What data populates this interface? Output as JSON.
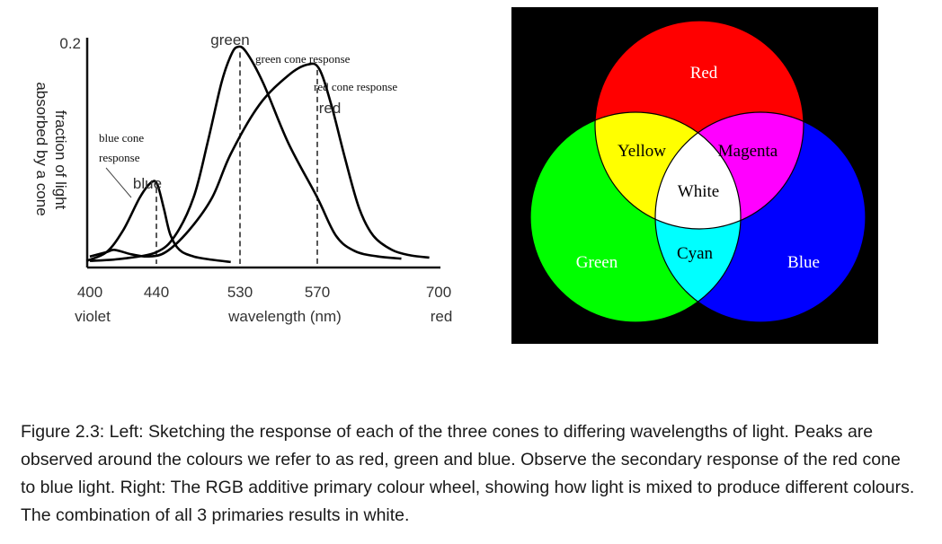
{
  "chart_data": {
    "type": "line",
    "ylabel_lines": [
      "fraction of light",
      "absorbed by a cone"
    ],
    "ytick": "0.2",
    "xlabel": "wavelength (nm)",
    "xticks": [
      "400",
      "440",
      "530",
      "570",
      "700"
    ],
    "xtick_values": [
      400,
      440,
      530,
      570,
      700
    ],
    "x_end_labels": {
      "left": "violet",
      "right": "red"
    },
    "xlim": [
      400,
      700
    ],
    "ylim": [
      0,
      0.2
    ],
    "grid": false,
    "series": [
      {
        "name": "blue",
        "annotation": [
          "blue cone",
          "response"
        ],
        "color": "#000000",
        "peak": 440,
        "points": [
          [
            398,
            0.002
          ],
          [
            410,
            0.01
          ],
          [
            420,
            0.03
          ],
          [
            430,
            0.06
          ],
          [
            437,
            0.074
          ],
          [
            441,
            0.072
          ],
          [
            448,
            0.05
          ],
          [
            455,
            0.026
          ],
          [
            465,
            0.012
          ],
          [
            480,
            0.006
          ],
          [
            500,
            0.003
          ],
          [
            520,
            0.001
          ]
        ]
      },
      {
        "name": "green",
        "annotation": [
          "green cone response"
        ],
        "color": "#000000",
        "peak": 530,
        "points": [
          [
            400,
            0.002
          ],
          [
            420,
            0.004
          ],
          [
            440,
            0.01
          ],
          [
            460,
            0.025
          ],
          [
            480,
            0.06
          ],
          [
            495,
            0.11
          ],
          [
            510,
            0.165
          ],
          [
            520,
            0.19
          ],
          [
            527,
            0.198
          ],
          [
            533,
            0.194
          ],
          [
            542,
            0.165
          ],
          [
            555,
            0.11
          ],
          [
            570,
            0.06
          ],
          [
            590,
            0.025
          ],
          [
            610,
            0.011
          ],
          [
            635,
            0.006
          ],
          [
            660,
            0.004
          ]
        ]
      },
      {
        "name": "red",
        "annotation": [
          "red cone response"
        ],
        "color": "#000000",
        "peak": 570,
        "points": [
          [
            400,
            0.006
          ],
          [
            410,
            0.01
          ],
          [
            415,
            0.012
          ],
          [
            425,
            0.008
          ],
          [
            435,
            0.006
          ],
          [
            450,
            0.01
          ],
          [
            475,
            0.03
          ],
          [
            500,
            0.06
          ],
          [
            520,
            0.1
          ],
          [
            540,
            0.145
          ],
          [
            555,
            0.172
          ],
          [
            565,
            0.182
          ],
          [
            572,
            0.178
          ],
          [
            585,
            0.145
          ],
          [
            600,
            0.095
          ],
          [
            615,
            0.05
          ],
          [
            630,
            0.025
          ],
          [
            650,
            0.012
          ],
          [
            670,
            0.007
          ],
          [
            690,
            0.005
          ]
        ]
      }
    ]
  },
  "wheel": {
    "labels": {
      "red": "Red",
      "green": "Green",
      "blue": "Blue",
      "yellow": "Yellow",
      "magenta": "Magenta",
      "cyan": "Cyan",
      "white": "White"
    },
    "colors": {
      "background": "#000000",
      "red": "#ff0000",
      "green": "#00ff00",
      "blue": "#0000ff",
      "yellow": "#ffff00",
      "magenta": "#ff00ff",
      "cyan": "#00ffff",
      "white": "#ffffff"
    }
  },
  "caption": "Figure 2.3:  Left: Sketching the response of each of the three cones to differing wavelengths of light. Peaks are observed around the colours we refer to as red, green and blue. Observe the secondary response of the red cone to blue light. Right: The RGB additive primary colour wheel, showing how light is mixed to produce different colours. The combination of all 3 primaries results in white."
}
